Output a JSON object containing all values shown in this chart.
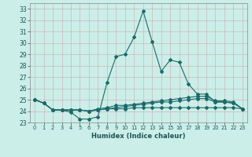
{
  "xlabel": "Humidex (Indice chaleur)",
  "background_color": "#cceee8",
  "grid_color": "#bbddd8",
  "line_color": "#1a6b6b",
  "xlim": [
    -0.5,
    23.5
  ],
  "ylim": [
    23,
    33.5
  ],
  "yticks": [
    23,
    24,
    25,
    26,
    27,
    28,
    29,
    30,
    31,
    32,
    33
  ],
  "xticks": [
    0,
    1,
    2,
    3,
    4,
    5,
    6,
    7,
    8,
    9,
    10,
    11,
    12,
    13,
    14,
    15,
    16,
    17,
    18,
    19,
    20,
    21,
    22,
    23
  ],
  "series": [
    [
      25.0,
      24.7,
      24.1,
      24.1,
      23.9,
      23.3,
      23.3,
      23.5,
      26.5,
      28.8,
      29.0,
      30.5,
      32.8,
      30.1,
      27.5,
      28.5,
      28.3,
      26.4,
      25.5,
      25.5,
      24.8,
      24.8,
      24.7,
      24.2
    ],
    [
      25.0,
      24.7,
      24.1,
      24.1,
      24.1,
      24.1,
      24.0,
      24.2,
      24.3,
      24.5,
      24.5,
      24.6,
      24.7,
      24.8,
      24.9,
      25.0,
      25.1,
      25.2,
      25.3,
      25.3,
      24.9,
      24.9,
      24.8,
      24.2
    ],
    [
      25.0,
      24.7,
      24.1,
      24.1,
      24.1,
      24.1,
      24.0,
      24.1,
      24.2,
      24.2,
      24.2,
      24.3,
      24.3,
      24.3,
      24.3,
      24.3,
      24.3,
      24.3,
      24.3,
      24.3,
      24.3,
      24.3,
      24.3,
      24.2
    ],
    [
      25.0,
      24.7,
      24.1,
      24.1,
      24.1,
      24.1,
      24.0,
      24.1,
      24.2,
      24.3,
      24.4,
      24.5,
      24.6,
      24.7,
      24.8,
      24.8,
      24.9,
      25.0,
      25.1,
      25.1,
      24.8,
      24.8,
      24.7,
      24.2
    ]
  ]
}
